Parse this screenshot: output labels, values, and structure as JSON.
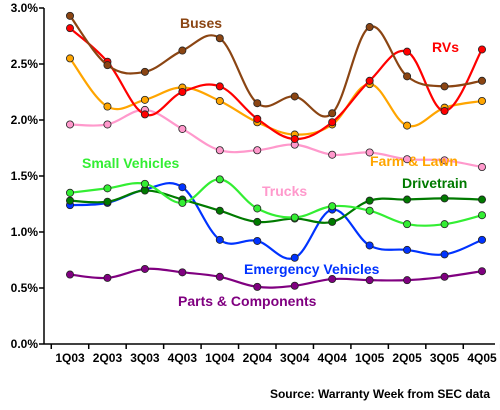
{
  "chart_data": {
    "type": "line",
    "categories": [
      "1Q03",
      "2Q03",
      "3Q03",
      "4Q03",
      "1Q04",
      "2Q04",
      "3Q04",
      "4Q04",
      "1Q05",
      "2Q05",
      "3Q05",
      "4Q05"
    ],
    "ylim": [
      0,
      3.0
    ],
    "yticks": [
      "0.0%",
      "0.5%",
      "1.0%",
      "1.5%",
      "2.0%",
      "2.5%",
      "3.0%"
    ],
    "grid": false,
    "legend": "inline labels",
    "source": "Source:  Warranty Week from SEC data",
    "series": [
      {
        "name": "Buses",
        "color": "#8B4513",
        "values": [
          2.93,
          2.49,
          2.43,
          2.62,
          2.73,
          2.15,
          2.21,
          2.06,
          2.83,
          2.39,
          2.3,
          2.35
        ]
      },
      {
        "name": "RVs",
        "color": "#FF0000",
        "values": [
          2.82,
          2.52,
          2.05,
          2.25,
          2.3,
          2.01,
          1.83,
          1.98,
          2.35,
          2.61,
          2.08,
          2.63
        ]
      },
      {
        "name": "Farm & Lawn",
        "color": "#FFA500",
        "values": [
          2.55,
          2.12,
          2.18,
          2.29,
          2.17,
          1.98,
          1.87,
          1.96,
          2.32,
          1.95,
          2.11,
          2.17
        ]
      },
      {
        "name": "Trucks",
        "color": "#FF99CC",
        "values": [
          1.96,
          1.96,
          2.09,
          1.92,
          1.73,
          1.73,
          1.78,
          1.69,
          1.71,
          1.65,
          1.64,
          1.58
        ]
      },
      {
        "name": "Small Vehicles",
        "color": "#33EE33",
        "values": [
          1.35,
          1.39,
          1.43,
          1.26,
          1.47,
          1.21,
          1.13,
          1.23,
          1.19,
          1.07,
          1.07,
          1.15
        ]
      },
      {
        "name": "Drivetrain",
        "color": "#007A00",
        "values": [
          1.28,
          1.27,
          1.37,
          1.29,
          1.19,
          1.09,
          1.12,
          1.09,
          1.28,
          1.29,
          1.3,
          1.29
        ]
      },
      {
        "name": "Emergency Vehicles",
        "color": "#0033FF",
        "values": [
          1.24,
          1.26,
          1.38,
          1.4,
          0.93,
          0.92,
          0.77,
          1.2,
          0.88,
          0.84,
          0.8,
          0.93
        ]
      },
      {
        "name": "Parts & Components",
        "color": "#800080",
        "values": [
          0.62,
          0.59,
          0.67,
          0.64,
          0.6,
          0.51,
          0.52,
          0.58,
          0.57,
          0.57,
          0.6,
          0.65
        ]
      }
    ]
  }
}
